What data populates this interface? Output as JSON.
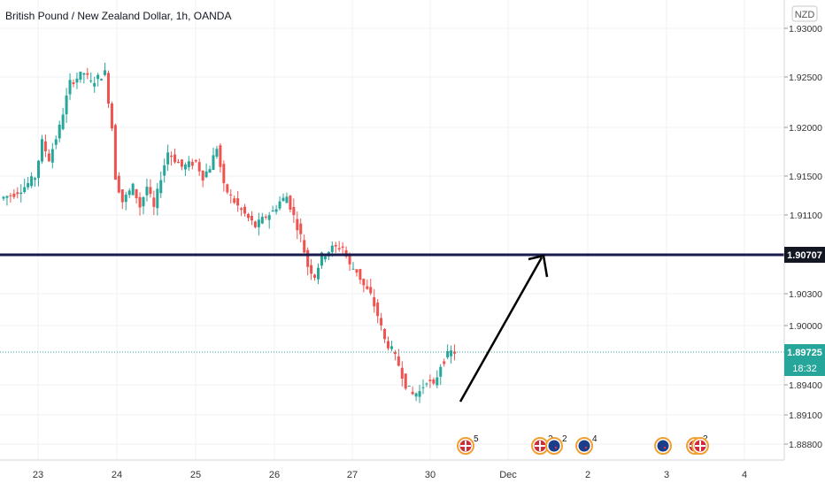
{
  "title": "British Pound / New Zealand Dollar, 1h, OANDA",
  "currency_badge": "NZD",
  "colors": {
    "up": "#26a69a",
    "down": "#ef5350",
    "grid": "#eef0f3",
    "axis_text": "#333333",
    "level_line": "#1a1a4e",
    "price_tag": "#26a69a",
    "level_tag": "#131722"
  },
  "price_axis": {
    "ticks": [
      "1.93000",
      "1.92500",
      "1.92000",
      "1.91500",
      "1.91100",
      "1.90300",
      "1.90000",
      "1.89400",
      "1.89100",
      "1.88800"
    ]
  },
  "time_axis": {
    "ticks": [
      "23",
      "24",
      "25",
      "26",
      "27",
      "30",
      "Dec",
      "2",
      "3",
      "4"
    ]
  },
  "level": {
    "label": "1.90707",
    "value": 1.90707
  },
  "last_price": {
    "label": "1.89725",
    "value": 1.89725,
    "countdown": "18:32"
  },
  "events": [
    {
      "icon": "gb-flag-icon",
      "count": "5"
    },
    {
      "icon": "gb-flag-icon",
      "count": "2"
    },
    {
      "icon": "nz-flag-icon",
      "count": "2"
    },
    {
      "icon": "nz-flag-icon",
      "count": "4"
    },
    {
      "icon": "nz-flag-icon",
      "count": ""
    },
    {
      "icon": "gb-flag-icon",
      "count": "2"
    },
    {
      "icon": "gb-flag-icon",
      "count": ""
    }
  ],
  "chart_data": {
    "type": "candlestick",
    "title": "British Pound / New Zealand Dollar, 1h, OANDA",
    "ylim": [
      1.8874,
      1.9312
    ],
    "grid": true,
    "level_line": 1.90707,
    "path_points": [
      [
        0,
        1.9128
      ],
      [
        4,
        1.9133
      ],
      [
        7,
        1.914
      ],
      [
        10,
        1.915
      ],
      [
        12,
        1.9185
      ],
      [
        14,
        1.9168
      ],
      [
        17,
        1.92
      ],
      [
        20,
        1.9245
      ],
      [
        22,
        1.925
      ],
      [
        24,
        1.9255
      ],
      [
        26,
        1.9245
      ],
      [
        28,
        1.925
      ],
      [
        30,
        1.9255
      ],
      [
        32,
        1.92
      ],
      [
        33,
        1.915
      ],
      [
        35,
        1.9125
      ],
      [
        38,
        1.914
      ],
      [
        40,
        1.912
      ],
      [
        42,
        1.914
      ],
      [
        44,
        1.9118
      ],
      [
        46,
        1.915
      ],
      [
        48,
        1.9175
      ],
      [
        52,
        1.916
      ],
      [
        56,
        1.9165
      ],
      [
        58,
        1.915
      ],
      [
        60,
        1.916
      ],
      [
        62,
        1.918
      ],
      [
        64,
        1.914
      ],
      [
        66,
        1.913
      ],
      [
        68,
        1.912
      ],
      [
        70,
        1.9112
      ],
      [
        73,
        1.91
      ],
      [
        76,
        1.911
      ],
      [
        78,
        1.9115
      ],
      [
        80,
        1.9125
      ],
      [
        82,
        1.913
      ],
      [
        84,
        1.911
      ],
      [
        86,
        1.909
      ],
      [
        88,
        1.906
      ],
      [
        90,
        1.905
      ],
      [
        92,
        1.907
      ],
      [
        95,
        1.9078
      ],
      [
        98,
        1.9079
      ],
      [
        100,
        1.906
      ],
      [
        102,
        1.9055
      ],
      [
        104,
        1.904
      ],
      [
        106,
        1.903
      ],
      [
        108,
        1.901
      ],
      [
        110,
        1.8985
      ],
      [
        112,
        1.8975
      ],
      [
        114,
        1.896
      ],
      [
        116,
        1.894
      ],
      [
        118,
        1.893
      ],
      [
        120,
        1.8933
      ],
      [
        122,
        1.8945
      ],
      [
        124,
        1.8938
      ],
      [
        126,
        1.896
      ],
      [
        128,
        1.897
      ],
      [
        129,
        1.8973
      ]
    ]
  }
}
